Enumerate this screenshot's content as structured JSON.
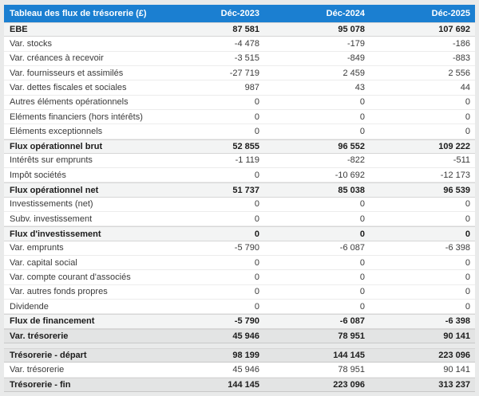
{
  "colors": {
    "header_bg": "#1b7fd1",
    "header_text": "#ffffff",
    "subtotal_row_bg": "#f3f4f4",
    "total_row_bg": "#e3e4e4",
    "page_bg": "#e9eaea"
  },
  "table": {
    "title": "Tableau des flux de trésorerie (£)",
    "columns": [
      "Déc-2023",
      "Déc-2024",
      "Déc-2025"
    ],
    "sections": [
      {
        "name": "flux",
        "rows": [
          {
            "label": "EBE",
            "values": [
              "87 581",
              "95 078",
              "107 692"
            ],
            "style": "subtotal"
          },
          {
            "label": "Var. stocks",
            "values": [
              "-4 478",
              "-179",
              "-186"
            ],
            "style": "normal"
          },
          {
            "label": "Var. créances à recevoir",
            "values": [
              "-3 515",
              "-849",
              "-883"
            ],
            "style": "normal"
          },
          {
            "label": "Var. fournisseurs et assimilés",
            "values": [
              "-27 719",
              "2 459",
              "2 556"
            ],
            "style": "normal"
          },
          {
            "label": "Var. dettes fiscales et sociales",
            "values": [
              "987",
              "43",
              "44"
            ],
            "style": "normal"
          },
          {
            "label": "Autres éléments opérationnels",
            "values": [
              "0",
              "0",
              "0"
            ],
            "style": "normal"
          },
          {
            "label": "Eléments financiers (hors intérêts)",
            "values": [
              "0",
              "0",
              "0"
            ],
            "style": "normal"
          },
          {
            "label": "Eléments exceptionnels",
            "values": [
              "0",
              "0",
              "0"
            ],
            "style": "normal"
          },
          {
            "label": "Flux opérationnel brut",
            "values": [
              "52 855",
              "96 552",
              "109 222"
            ],
            "style": "subtotal"
          },
          {
            "label": "Intérêts sur emprunts",
            "values": [
              "-1 119",
              "-822",
              "-511"
            ],
            "style": "normal"
          },
          {
            "label": "Impôt sociétés",
            "values": [
              "0",
              "-10 692",
              "-12 173"
            ],
            "style": "normal"
          },
          {
            "label": "Flux opérationnel net",
            "values": [
              "51 737",
              "85 038",
              "96 539"
            ],
            "style": "subtotal"
          },
          {
            "label": "Investissements (net)",
            "values": [
              "0",
              "0",
              "0"
            ],
            "style": "normal"
          },
          {
            "label": "Subv. investissement",
            "values": [
              "0",
              "0",
              "0"
            ],
            "style": "normal"
          },
          {
            "label": "Flux d'investissement",
            "values": [
              "0",
              "0",
              "0"
            ],
            "style": "subtotal"
          },
          {
            "label": "Var. emprunts",
            "values": [
              "-5 790",
              "-6 087",
              "-6 398"
            ],
            "style": "normal"
          },
          {
            "label": "Var. capital social",
            "values": [
              "0",
              "0",
              "0"
            ],
            "style": "normal"
          },
          {
            "label": "Var. compte courant d'associés",
            "values": [
              "0",
              "0",
              "0"
            ],
            "style": "normal"
          },
          {
            "label": "Var. autres fonds propres",
            "values": [
              "0",
              "0",
              "0"
            ],
            "style": "normal"
          },
          {
            "label": "Dividende",
            "values": [
              "0",
              "0",
              "0"
            ],
            "style": "normal"
          },
          {
            "label": "Flux de financement",
            "values": [
              "-5 790",
              "-6 087",
              "-6 398"
            ],
            "style": "subtotal"
          },
          {
            "label": "Var. trésorerie",
            "values": [
              "45 946",
              "78 951",
              "90 141"
            ],
            "style": "total"
          }
        ]
      },
      {
        "name": "tresorerie",
        "rows": [
          {
            "label": "Trésorerie - départ",
            "values": [
              "98 199",
              "144 145",
              "223 096"
            ],
            "style": "total"
          },
          {
            "label": "Var. trésorerie",
            "values": [
              "45 946",
              "78 951",
              "90 141"
            ],
            "style": "normal"
          },
          {
            "label": "Trésorerie - fin",
            "values": [
              "144 145",
              "223 096",
              "313 237"
            ],
            "style": "total"
          }
        ]
      }
    ]
  }
}
